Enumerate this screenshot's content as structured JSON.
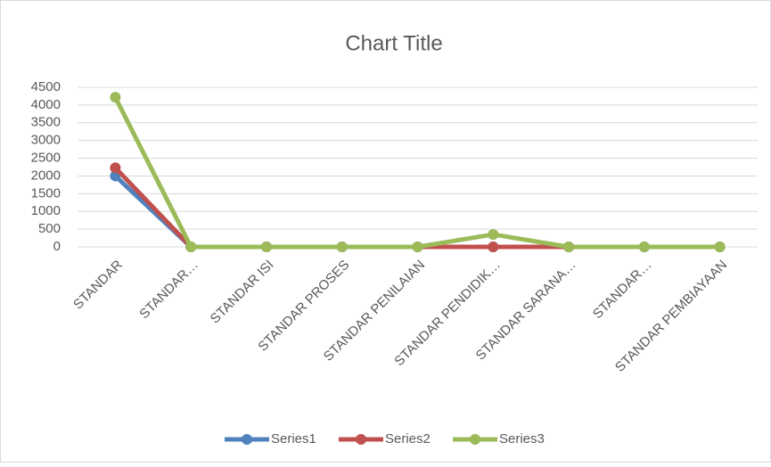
{
  "chart_data": {
    "type": "line",
    "title": "Chart Title",
    "categories": [
      "STANDAR",
      "STANDAR…",
      "STANDAR ISI",
      "STANDAR PROSES",
      "STANDAR PENILAIAN",
      "STANDAR PENDIDIK…",
      "STANDAR SARANA…",
      "STANDAR…",
      "STANDAR PEMBIAYAAN"
    ],
    "series": [
      {
        "name": "Series1",
        "color": "#4f81bd",
        "values": [
          2000,
          0,
          0,
          0,
          0,
          0,
          0,
          0,
          0
        ]
      },
      {
        "name": "Series2",
        "color": "#c0504d",
        "values": [
          2230,
          0,
          0,
          0,
          0,
          0,
          0,
          0,
          0
        ]
      },
      {
        "name": "Series3",
        "color": "#9bbb59",
        "values": [
          4220,
          0,
          0,
          0,
          0,
          350,
          0,
          0,
          0
        ]
      }
    ],
    "ylim": [
      0,
      4500
    ],
    "yticks": [
      0,
      500,
      1000,
      1500,
      2000,
      2500,
      3000,
      3500,
      4000,
      4500
    ],
    "grid": true,
    "legend": "bottom"
  }
}
